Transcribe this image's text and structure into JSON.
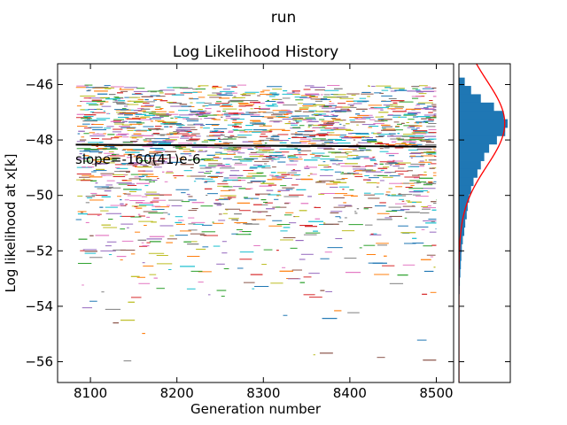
{
  "figure": {
    "suptitle": "run"
  },
  "chart_data": [
    {
      "type": "line",
      "title": "Log Likelihood History",
      "xlabel": "Generation number",
      "ylabel": "Log likelihood at x[k]",
      "xlim": [
        8062,
        8520
      ],
      "ylim": [
        -56.75,
        -45.25
      ],
      "x_ticks": [
        8100,
        8200,
        8300,
        8400,
        8500
      ],
      "x_tick_labels": [
        "8100",
        "8200",
        "8300",
        "8400",
        "8500"
      ],
      "y_ticks": [
        -46,
        -48,
        -50,
        -52,
        -54,
        -56
      ],
      "y_tick_labels": [
        "−46",
        "−48",
        "−50",
        "−52",
        "−54",
        "−56"
      ],
      "x_range": [
        8083,
        8500
      ],
      "grid": false,
      "mean": -48.2,
      "trend_line": {
        "x": [
          8083,
          8500
        ],
        "y": [
          -48.17,
          -48.24
        ],
        "color": "#000000"
      },
      "annotation": "slope=-160(41)e-6",
      "series_count": "many",
      "series_colors": [
        "#1f77b4",
        "#ff7f0e",
        "#2ca02c",
        "#d62728",
        "#9467bd",
        "#8c564b",
        "#e377c2",
        "#7f7f7f",
        "#bcbd22",
        "#17becf"
      ],
      "density_profile": [
        {
          "y": -46.0,
          "density": 0.55
        },
        {
          "y": -47.0,
          "density": 1.0
        },
        {
          "y": -48.0,
          "density": 0.95
        },
        {
          "y": -49.0,
          "density": 0.75
        },
        {
          "y": -50.0,
          "density": 0.45
        },
        {
          "y": -51.0,
          "density": 0.28
        },
        {
          "y": -52.0,
          "density": 0.14
        },
        {
          "y": -53.0,
          "density": 0.06
        },
        {
          "y": -54.0,
          "density": 0.025
        },
        {
          "y": -55.0,
          "density": 0.012
        },
        {
          "y": -56.0,
          "density": 0.005
        }
      ]
    },
    {
      "type": "bar",
      "orientation": "horizontal",
      "ylim": [
        -56.75,
        -45.25
      ],
      "bar_color": "#1f77b4",
      "fit_curve_color": "#ff0000",
      "fit_curve": {
        "mean": -47.4,
        "sd": 1.55
      },
      "bins": [
        {
          "y": -45.9,
          "value": 0.12
        },
        {
          "y": -46.2,
          "value": 0.25
        },
        {
          "y": -46.5,
          "value": 0.45
        },
        {
          "y": -46.8,
          "value": 0.72
        },
        {
          "y": -47.1,
          "value": 0.92
        },
        {
          "y": -47.4,
          "value": 1.0
        },
        {
          "y": -47.7,
          "value": 0.95
        },
        {
          "y": -48.0,
          "value": 0.78
        },
        {
          "y": -48.3,
          "value": 0.62
        },
        {
          "y": -48.6,
          "value": 0.52
        },
        {
          "y": -48.9,
          "value": 0.45
        },
        {
          "y": -49.2,
          "value": 0.38
        },
        {
          "y": -49.5,
          "value": 0.3
        },
        {
          "y": -49.8,
          "value": 0.25
        },
        {
          "y": -50.1,
          "value": 0.21
        },
        {
          "y": -50.4,
          "value": 0.18
        },
        {
          "y": -50.7,
          "value": 0.16
        },
        {
          "y": -51.0,
          "value": 0.13
        },
        {
          "y": -51.3,
          "value": 0.11
        },
        {
          "y": -51.6,
          "value": 0.08
        },
        {
          "y": -51.9,
          "value": 0.06
        },
        {
          "y": -52.2,
          "value": 0.05
        },
        {
          "y": -52.5,
          "value": 0.04
        },
        {
          "y": -52.8,
          "value": 0.03
        },
        {
          "y": -53.1,
          "value": 0.02
        },
        {
          "y": -53.4,
          "value": 0.015
        }
      ]
    }
  ]
}
